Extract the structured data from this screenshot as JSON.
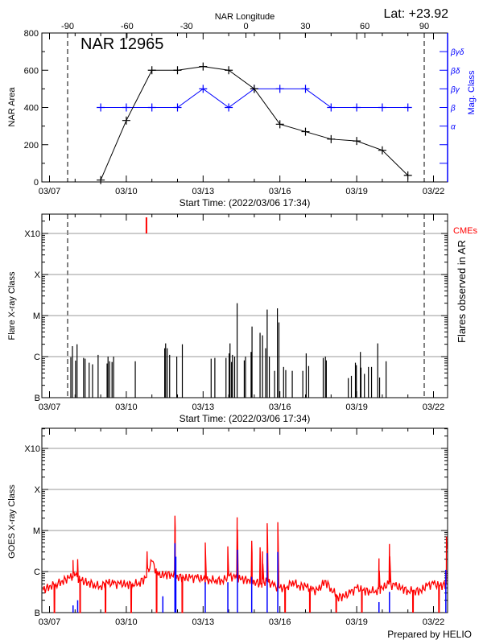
{
  "header": {
    "latitude": "Lat: +23.92",
    "footer": "Prepared by HELIO"
  },
  "colors": {
    "area": "#000000",
    "mag_class": "#0000ff",
    "cme": "#ff0000",
    "goes_long": "#ff0000",
    "goes_short": "#0000ff",
    "grid": "#999999"
  },
  "chart_data": [
    {
      "type": "line",
      "title": "NAR 12965",
      "xlabel": "Start Time: (2022/03/06 17:34)",
      "ylabel": "NAR Area",
      "y2label": "Mag. Class",
      "top_xlabel": "NAR Longitude",
      "top_xticks": [
        "-90",
        "-60",
        "-30",
        "0",
        "30",
        "60",
        "90"
      ],
      "xticks": [
        "03/07",
        "03/10",
        "03/13",
        "03/16",
        "03/19",
        "03/22"
      ],
      "yticks": [
        "0",
        "200",
        "400",
        "600",
        "800"
      ],
      "ylim": [
        0,
        800
      ],
      "y2ticks": [
        "α",
        "β",
        "βγ",
        "βδ",
        "βγδ"
      ],
      "limb_longitudes": [
        -90,
        90
      ],
      "x": [
        "03/09",
        "03/10",
        "03/11",
        "03/12",
        "03/13",
        "03/14",
        "03/15",
        "03/16",
        "03/17",
        "03/18",
        "03/19",
        "03/20",
        "03/21"
      ],
      "series": [
        {
          "values": [
            10,
            330,
            600,
            600,
            620,
            600,
            500,
            310,
            270,
            230,
            220,
            170,
            35
          ]
        },
        {
          "values": [
            "β",
            "β",
            "β",
            "β",
            "βγ",
            "β",
            "βγ",
            "βγ",
            "βγ",
            "β",
            "β",
            "β",
            "β"
          ]
        }
      ]
    },
    {
      "type": "bar",
      "xlabel": "Start Time: (2022/03/06 17:34)",
      "ylabel": "Flare X-ray Class",
      "y2label": "Flares observed in AR",
      "cme_label": "CMEs",
      "xticks": [
        "03/07",
        "03/10",
        "03/13",
        "03/16",
        "03/19",
        "03/22"
      ],
      "yticks": [
        "B",
        "C",
        "M",
        "X",
        "X10"
      ],
      "yscale": "log",
      "grid": true,
      "cmes": [
        "03/10 18:52"
      ],
      "flares": [
        {
          "time": "03/07 20:00",
          "class": "B9.7"
        },
        {
          "time": "03/07 21:30",
          "class": "C1.8"
        },
        {
          "time": "03/08 00:24",
          "class": "B8.0"
        },
        {
          "time": "03/08 01:50",
          "class": "C2.0"
        },
        {
          "time": "03/08 07:56",
          "class": "B9.3"
        },
        {
          "time": "03/08 09:23",
          "class": "B8.9"
        },
        {
          "time": "03/08 13:10",
          "class": "B7.1"
        },
        {
          "time": "03/08 16:21",
          "class": "B6.5"
        },
        {
          "time": "03/08 21:34",
          "class": "C1.1"
        },
        {
          "time": "03/09 06:00",
          "class": "B6.8"
        },
        {
          "time": "03/09 06:52",
          "class": "C1.0"
        },
        {
          "time": "03/09 08:19",
          "class": "B7.7"
        },
        {
          "time": "03/09 10:38",
          "class": "B7.4"
        },
        {
          "time": "03/09 12:05",
          "class": "C1.0"
        },
        {
          "time": "03/10 08:25",
          "class": "B7.7"
        },
        {
          "time": "03/11 12:00",
          "class": "C1.6"
        },
        {
          "time": "03/11 12:52",
          "class": "C2.1"
        },
        {
          "time": "03/11 14:19",
          "class": "C1.6"
        },
        {
          "time": "03/11 16:38",
          "class": "C1.1"
        },
        {
          "time": "03/11 23:19",
          "class": "C1.0"
        },
        {
          "time": "03/12 04:32",
          "class": "C2.0"
        },
        {
          "time": "03/13 07:32",
          "class": "B8.9"
        },
        {
          "time": "03/13 11:01",
          "class": "B9.3"
        },
        {
          "time": "03/13 21:28",
          "class": "B9.3"
        },
        {
          "time": "03/14 00:22",
          "class": "C1.2"
        },
        {
          "time": "03/14 01:14",
          "class": "C2.1"
        },
        {
          "time": "03/14 02:41",
          "class": "B7.4"
        },
        {
          "time": "03/14 03:33",
          "class": "C1.1"
        },
        {
          "time": "03/14 05:35",
          "class": "C1.0"
        },
        {
          "time": "03/14 07:54",
          "class": "M2.0"
        },
        {
          "time": "03/14 14:35",
          "class": "B8.1"
        },
        {
          "time": "03/14 15:45",
          "class": "C1.0"
        },
        {
          "time": "03/14 21:00",
          "class": "C1.3"
        },
        {
          "time": "03/14 21:52",
          "class": "C5.4"
        },
        {
          "time": "03/15 05:24",
          "class": "C3.8"
        },
        {
          "time": "03/15 07:43",
          "class": "C3.3"
        },
        {
          "time": "03/15 10:37",
          "class": "C1.6"
        },
        {
          "time": "03/15 12:04",
          "class": "M1.4"
        },
        {
          "time": "03/15 14:06",
          "class": "C1.0"
        },
        {
          "time": "03/15 19:02",
          "class": "B4.5"
        },
        {
          "time": "03/15 21:39",
          "class": "M1.5"
        },
        {
          "time": "03/15 23:06",
          "class": "C6.8"
        },
        {
          "time": "03/16 03:28",
          "class": "B5.6"
        },
        {
          "time": "03/16 05:30",
          "class": "B4.7"
        },
        {
          "time": "03/16 11:36",
          "class": "B4.5"
        },
        {
          "time": "03/16 21:28",
          "class": "B4.5"
        },
        {
          "time": "03/17 00:39",
          "class": "C1.2"
        },
        {
          "time": "03/17 02:59",
          "class": "B5.9"
        },
        {
          "time": "03/17 16:37",
          "class": "B9.3"
        },
        {
          "time": "03/17 18:39",
          "class": "C1.0"
        },
        {
          "time": "03/17 19:31",
          "class": "B8.1"
        },
        {
          "time": "03/18 16:08",
          "class": "B3.0"
        },
        {
          "time": "03/18 19:02",
          "class": "B3.4"
        },
        {
          "time": "03/18 22:49",
          "class": "B7.1"
        },
        {
          "time": "03/18 23:42",
          "class": "B6.2"
        },
        {
          "time": "03/19 03:28",
          "class": "C1.3"
        },
        {
          "time": "03/19 04:03",
          "class": "B5.4"
        },
        {
          "time": "03/19 07:15",
          "class": "B3.8"
        },
        {
          "time": "03/19 11:02",
          "class": "B5.6"
        },
        {
          "time": "03/19 13:55",
          "class": "B5.6"
        },
        {
          "time": "03/19 19:43",
          "class": "C2.1"
        },
        {
          "time": "03/19 21:28",
          "class": "B3.1"
        },
        {
          "time": "03/20 03:33",
          "class": "B7.7"
        }
      ]
    },
    {
      "type": "line",
      "ylabel": "GOES X-ray Class",
      "xticks": [
        "03/07",
        "03/10",
        "03/13",
        "03/16",
        "03/19",
        "03/22"
      ],
      "yticks": [
        "B",
        "C",
        "M",
        "X",
        "X10"
      ],
      "yscale": "log",
      "grid": true,
      "background_start": "03/06 18:00",
      "background_step_hours": 6,
      "goes_long_background": [
        "B3.5",
        "B4.5",
        "B5",
        "B6",
        "B7",
        "B8",
        "B6",
        "B5.5",
        "B5",
        "B4.5",
        "B5.5",
        "B5",
        "B5",
        "B5",
        "B5",
        "B5.5",
        "B7",
        "C1.8",
        "B8",
        "B8.5",
        "B9",
        "B8",
        "B7",
        "B7",
        "B7",
        "B6.5",
        "B6.5",
        "B6.5",
        "B6",
        "B8",
        "B7",
        "B6.5",
        "B6.5",
        "B6",
        "B5",
        "B6",
        "B4.5",
        "B4",
        "B4",
        "B6",
        "B4.5",
        "B4.5",
        "B3.5",
        "B3.5",
        "B6",
        "B4",
        "B2.5",
        "B2.5",
        "B3",
        "B4",
        "B3.5",
        "B3.5",
        "B3.5",
        "B4",
        "B5",
        "B4.5",
        "B4",
        "B3.5",
        "B3.5",
        "B3.5",
        "B4.5",
        "B5",
        "B4.5",
        "B5"
      ],
      "goes_long_peaks": [
        {
          "time": "03/07 22:04",
          "class": "C1.9"
        },
        {
          "time": "03/08 02:25",
          "class": "C2.0"
        },
        {
          "time": "03/10 19:27",
          "class": "C3.1"
        },
        {
          "time": "03/11 21:35",
          "class": "M2.3"
        },
        {
          "time": "03/13 02:01",
          "class": "C5.1"
        },
        {
          "time": "03/13 23:12",
          "class": "C4.1"
        },
        {
          "time": "03/14 07:54",
          "class": "M2.1"
        },
        {
          "time": "03/14 21:34",
          "class": "C5.6"
        },
        {
          "time": "03/15 05:24",
          "class": "C3.9"
        },
        {
          "time": "03/15 07:43",
          "class": "C3.1"
        },
        {
          "time": "03/15 12:04",
          "class": "M1.5"
        },
        {
          "time": "03/15 22:00",
          "class": "M1.6"
        },
        {
          "time": "03/19 20:53",
          "class": "C2.1"
        },
        {
          "time": "03/20 06:44",
          "class": "C4.7"
        },
        {
          "time": "03/22 12:10",
          "class": "C7.1"
        }
      ],
      "data_gaps": [
        "03/07 04:21",
        "03/08 04:27",
        "03/09 04:15",
        "03/10 04:21",
        "03/11 04:09",
        "03/12 04:15",
        "03/16 04:38",
        "03/17 03:52",
        "03/18 04:32",
        "03/19 04:38",
        "03/21 04:32",
        "03/22 04:55"
      ],
      "goes_short_peaks": [
        {
          "time": "03/07 22:04",
          "class": "B1.5"
        },
        {
          "time": "03/08 02:25",
          "class": "B2.0"
        },
        {
          "time": "03/11 10:15",
          "class": "B2.5"
        },
        {
          "time": "03/11 21:35",
          "class": "C4.9"
        },
        {
          "time": "03/11 22:27",
          "class": "C2.3"
        },
        {
          "time": "03/13 02:01",
          "class": "B5.5"
        },
        {
          "time": "03/13 23:12",
          "class": "B5.5"
        },
        {
          "time": "03/14 08:12",
          "class": "C3.4"
        },
        {
          "time": "03/14 21:34",
          "class": "B7.4"
        },
        {
          "time": "03/15 12:04",
          "class": "C2.8"
        },
        {
          "time": "03/15 22:00",
          "class": "C3.0"
        },
        {
          "time": "03/19 20:53",
          "class": "B1.8"
        },
        {
          "time": "03/20 06:44",
          "class": "B3.2"
        },
        {
          "time": "03/22 11:34",
          "class": "C1.1"
        }
      ]
    }
  ]
}
